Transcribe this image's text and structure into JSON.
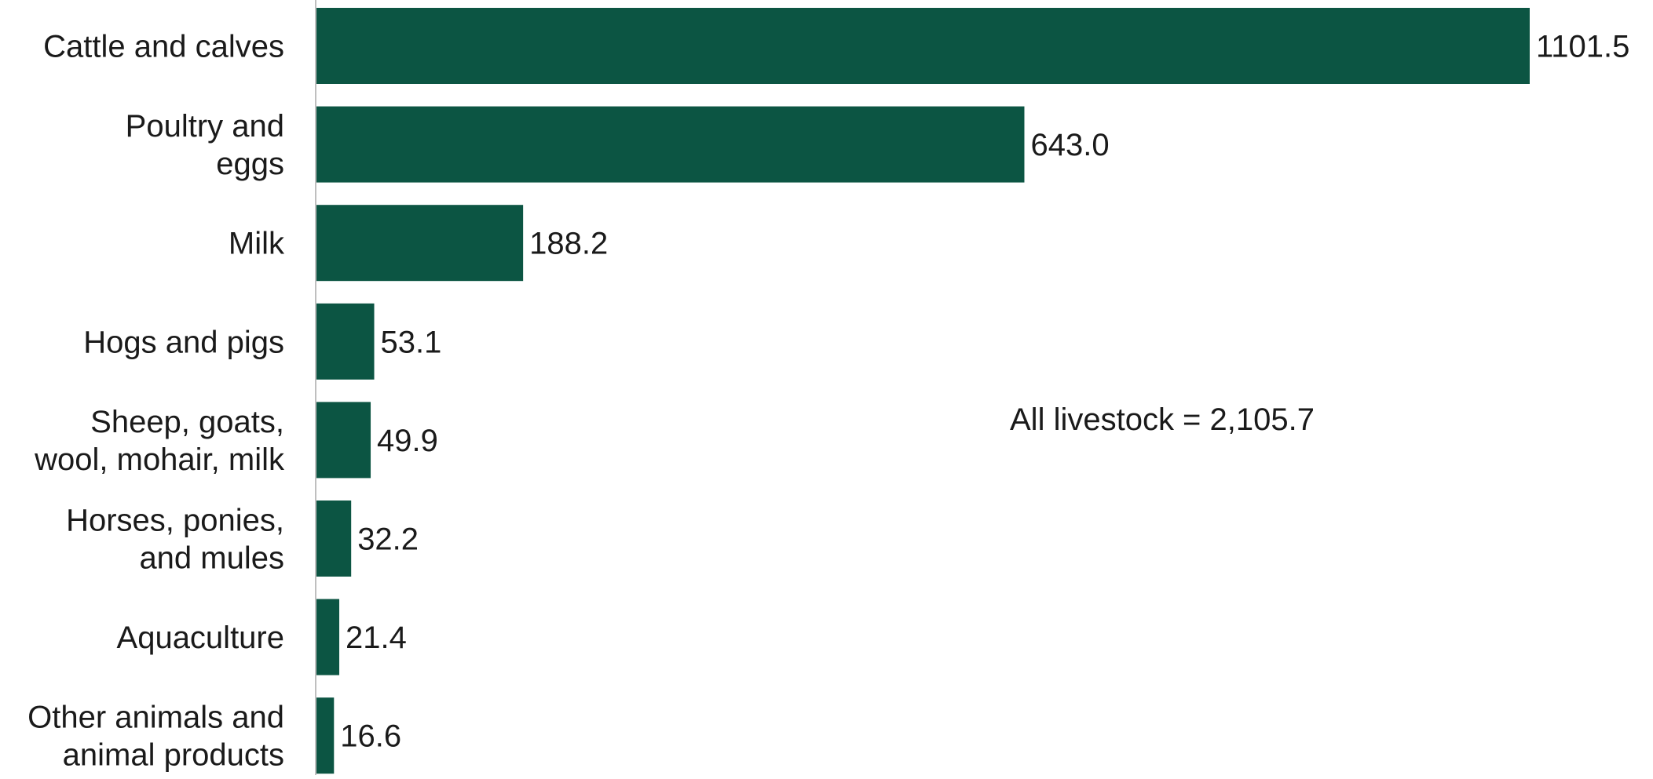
{
  "chart_data": {
    "type": "bar",
    "orientation": "horizontal",
    "categories": [
      [
        "Cattle and calves"
      ],
      [
        "Poultry and",
        "eggs"
      ],
      [
        "Milk"
      ],
      [
        "Hogs and pigs"
      ],
      [
        "Sheep, goats,",
        "wool, mohair, milk"
      ],
      [
        "Horses, ponies,",
        "and mules"
      ],
      [
        "Aquaculture"
      ],
      [
        "Other animals and",
        "animal products"
      ]
    ],
    "values": [
      1101.5,
      643.0,
      188.2,
      53.1,
      49.9,
      32.2,
      21.4,
      16.6
    ],
    "value_labels": [
      "1101.5",
      "643.0",
      "188.2",
      "53.1",
      "49.9",
      "32.2",
      "21.4",
      "16.6"
    ],
    "annotation": "All livestock = 2,105.7",
    "title": "",
    "xlabel": "",
    "ylabel": "",
    "xlim": [
      0,
      1101.5
    ],
    "grid": false,
    "legend": "none",
    "bar_color": "#0c5543",
    "axis_color": "#bfbfbf"
  }
}
